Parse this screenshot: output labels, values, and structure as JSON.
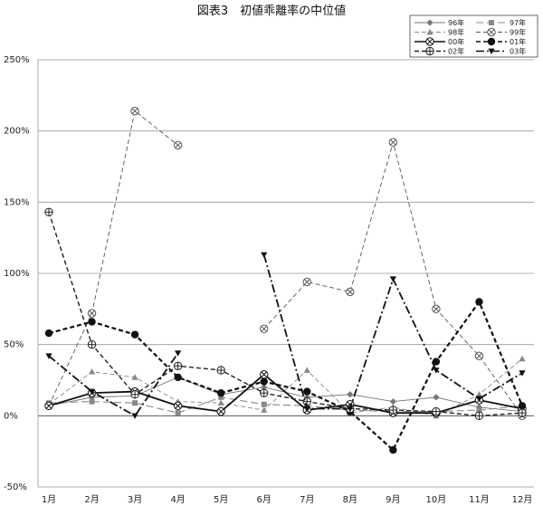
{
  "chart_data": {
    "type": "line",
    "title": "図表3　初値乖離率の中位値",
    "categories": [
      "1月",
      "2月",
      "3月",
      "4月",
      "5月",
      "6月",
      "7月",
      "8月",
      "9月",
      "10月",
      "11月",
      "12月"
    ],
    "y_ticks": [
      "250%",
      "200%",
      "150%",
      "100%",
      "50%",
      "0%",
      "-50%"
    ],
    "ylim": [
      -50,
      250
    ],
    "grid": true,
    "legend_position": "top-right",
    "series": [
      {
        "name": "96年",
        "marker": "diamond",
        "dash": "solid",
        "width": 0.9,
        "color": "#777777",
        "values": [
          7,
          13,
          14,
          27,
          15,
          20,
          13,
          15,
          10,
          13,
          6,
          3
        ]
      },
      {
        "name": "97年",
        "marker": "square",
        "dash": "longdash",
        "width": 1.1,
        "color": "#888888",
        "values": [
          9,
          10,
          9,
          2,
          13,
          8,
          7,
          4,
          3,
          3,
          4,
          7
        ]
      },
      {
        "name": "98年",
        "marker": "triangle",
        "dash": "dashed",
        "width": 0.9,
        "color": "#888888",
        "values": [
          8,
          31,
          27,
          10,
          9,
          4,
          32,
          2,
          6,
          0,
          15,
          40
        ]
      },
      {
        "name": "99年",
        "marker": "xcircle",
        "dash": "dashed",
        "width": 0.9,
        "color": "#555555",
        "values": [
          7,
          72,
          214,
          190,
          null,
          61,
          94,
          87,
          192,
          75,
          42,
          0
        ]
      },
      {
        "name": "00年",
        "marker": "xcircle",
        "dash": "solid",
        "width": 1.8,
        "color": "#111111",
        "values": [
          7,
          16,
          17,
          7,
          3,
          29,
          4,
          8,
          2,
          2,
          11,
          5
        ]
      },
      {
        "name": "01年",
        "marker": "circle",
        "dash": "dashed",
        "width": 2.2,
        "color": "#111111",
        "values": [
          58,
          66,
          57,
          27,
          16,
          24,
          17,
          3,
          -24,
          38,
          80,
          7
        ]
      },
      {
        "name": "02年",
        "marker": "pluscircle",
        "dash": "dashed",
        "width": 1.4,
        "color": "#222222",
        "values": [
          143,
          50,
          15,
          35,
          32,
          16,
          10,
          5,
          4,
          3,
          0,
          2
        ]
      },
      {
        "name": "03年",
        "marker": "tridown",
        "dash": "dashdot",
        "width": 1.8,
        "color": "#111111",
        "values": [
          42,
          17,
          0,
          44,
          null,
          113,
          5,
          5,
          96,
          32,
          12,
          30
        ]
      }
    ]
  }
}
